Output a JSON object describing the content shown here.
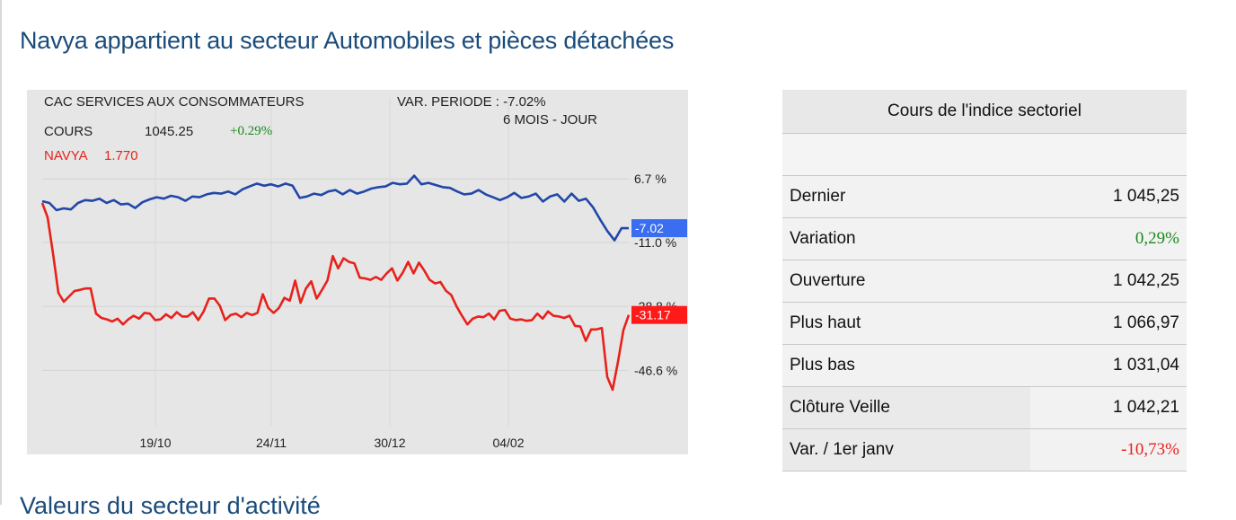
{
  "page": {
    "title": "Navya appartient au secteur Automobiles et pièces détachées",
    "next_section_title": "Valeurs du secteur d'activité"
  },
  "chart_header": {
    "index_name": "CAC SERVICES AUX CONSOMMATEURS",
    "var_periode": "VAR. PERIODE : -7.02%",
    "cours_label": "COURS",
    "cours_value": "1045.25",
    "cours_change": "+0.29%",
    "period": "6 MOIS - JOUR",
    "stock_label": "NAVYA",
    "stock_value": "1.770"
  },
  "chart_data": {
    "type": "line",
    "title": "",
    "x_ticks": [
      "19/10",
      "24/11",
      "30/12",
      "04/02"
    ],
    "y_ticks": [
      "6.7 %",
      "-11.0 %",
      "-28.8 %",
      "-46.6 %"
    ],
    "y_tick_values": [
      6.7,
      -11.0,
      -28.8,
      -46.6
    ],
    "ylim": [
      -62,
      14
    ],
    "grid": true,
    "series": [
      {
        "name": "CAC SERVICES AUX CONSOMMATEURS",
        "color": "#2147a8",
        "end_label": "-7.02",
        "values": [
          0.5,
          0,
          -2,
          -1.5,
          -1.8,
          0,
          0.8,
          0.6,
          1.2,
          0,
          0.8,
          -0.4,
          -0.2,
          -1.4,
          0.2,
          1,
          1.6,
          1.2,
          2,
          1.6,
          0.6,
          1.8,
          1.6,
          2.4,
          2.8,
          2.6,
          3.2,
          2.4,
          3.8,
          4.6,
          5.4,
          4.8,
          5.2,
          4.6,
          5.4,
          4.8,
          1.4,
          1.8,
          2.6,
          2.2,
          3.2,
          3.6,
          2.4,
          3.6,
          2.6,
          3.2,
          4,
          4.4,
          4.6,
          5.6,
          5.2,
          5.4,
          7.6,
          5.2,
          5.6,
          5,
          4.4,
          4.2,
          3.2,
          2.4,
          2.6,
          3.6,
          2.4,
          1.6,
          0.8,
          1.6,
          2.8,
          1.4,
          1.8,
          2.6,
          0.4,
          1.8,
          2.4,
          0.4,
          2.6,
          0.6,
          1.2,
          -1.2,
          -4.6,
          -7.8,
          -10.4,
          -7,
          -7.02
        ]
      },
      {
        "name": "NAVYA",
        "color": "#e8211b",
        "end_label": "-31.17",
        "values": [
          0,
          -4,
          -14,
          -25,
          -27.5,
          -26,
          -24.5,
          -24.2,
          -23.8,
          -23.8,
          -30.8,
          -32,
          -32.4,
          -33,
          -32.2,
          -33.8,
          -32.4,
          -31.4,
          -32.2,
          -30.6,
          -30.8,
          -32.6,
          -32.4,
          -31,
          -32,
          -30.4,
          -31.6,
          -31.6,
          -30.4,
          -32.6,
          -30.2,
          -26.6,
          -26.6,
          -28.6,
          -32.6,
          -31.2,
          -30.8,
          -31.8,
          -30.6,
          -31.2,
          -30.6,
          -25.4,
          -29.2,
          -30.6,
          -29.2,
          -26.4,
          -27.2,
          -21.6,
          -27.8,
          -23.8,
          -21.8,
          -26.6,
          -24.2,
          -21.6,
          -14.8,
          -18.2,
          -15.4,
          -16.4,
          -16.8,
          -20.8,
          -21,
          -21.4,
          -20.6,
          -21.4,
          -19.6,
          -18.2,
          -21.6,
          -19.4,
          -16.4,
          -19.6,
          -16.6,
          -18.8,
          -21.4,
          -22.4,
          -22,
          -24.4,
          -25.6,
          -28.8,
          -31.4,
          -33.8,
          -32.2,
          -31.6,
          -31.8,
          -30.8,
          -32.4,
          -30,
          -29.8,
          -32.2,
          -32.6,
          -32.4,
          -32.8,
          -32.6,
          -30.8,
          -32.2,
          -30.2,
          -31.4,
          -31.6,
          -32,
          -31.4,
          -34.2,
          -34.4,
          -38.4,
          -35.2,
          -35.2,
          -34.8,
          -48.4,
          -52,
          -44.2,
          -35.4,
          -31.17
        ]
      }
    ]
  },
  "table": {
    "header": "Cours de l'indice sectoriel",
    "rows": [
      {
        "label": "Dernier",
        "value": "1 045,25"
      },
      {
        "label": "Variation",
        "value": "0,29%"
      },
      {
        "label": "Ouverture",
        "value": "1 042,25"
      },
      {
        "label": "Plus haut",
        "value": "1 066,97"
      },
      {
        "label": "Plus bas",
        "value": "1 031,04"
      },
      {
        "label": "Clôture Veille",
        "value": "1 042,21"
      },
      {
        "label": "Var. / 1er janv",
        "value": "-10,73%"
      }
    ]
  }
}
